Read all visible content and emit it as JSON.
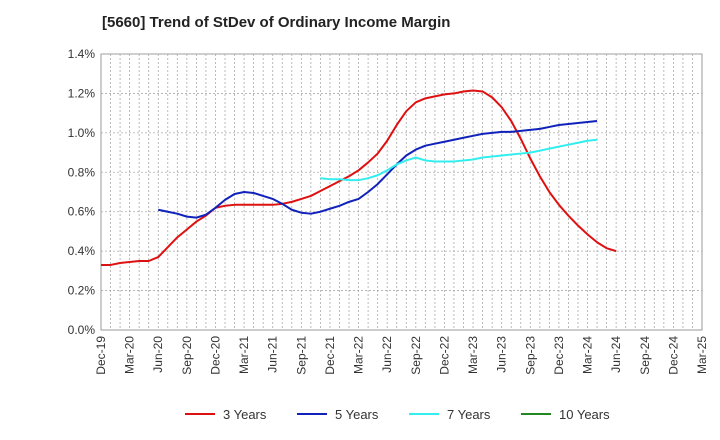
{
  "chart_data": {
    "type": "line",
    "title": "[5660]  Trend of StDev of Ordinary Income Margin",
    "xlabel": "",
    "ylabel": "",
    "ylim": [
      0,
      1.4
    ],
    "y_ticks": [
      0,
      0.2,
      0.4,
      0.6,
      0.8,
      1.0,
      1.2,
      1.4
    ],
    "y_tick_labels": [
      "0.0%",
      "0.2%",
      "0.4%",
      "0.6%",
      "0.8%",
      "1.0%",
      "1.2%",
      "1.4%"
    ],
    "x_tick_labels": [
      "Dec-19",
      "Mar-20",
      "Jun-20",
      "Sep-20",
      "Dec-20",
      "Mar-21",
      "Jun-21",
      "Sep-21",
      "Dec-21",
      "Mar-22",
      "Jun-22",
      "Sep-22",
      "Dec-22",
      "Mar-23",
      "Jun-23",
      "Sep-23",
      "Dec-23",
      "Mar-24",
      "Jun-24",
      "Sep-24",
      "Dec-24",
      "Mar-25"
    ],
    "grid": true,
    "legend_position": "bottom",
    "series": [
      {
        "name": "3 Years",
        "color": "#dd1111",
        "points": [
          [
            0,
            0.33
          ],
          [
            1,
            0.33
          ],
          [
            2,
            0.34
          ],
          [
            3,
            0.345
          ],
          [
            4,
            0.35
          ],
          [
            5,
            0.35
          ],
          [
            6,
            0.37
          ],
          [
            7,
            0.42
          ],
          [
            8,
            0.47
          ],
          [
            9,
            0.51
          ],
          [
            10,
            0.55
          ],
          [
            11,
            0.58
          ],
          [
            12,
            0.62
          ],
          [
            13,
            0.63
          ],
          [
            14,
            0.635
          ],
          [
            15,
            0.635
          ],
          [
            16,
            0.635
          ],
          [
            17,
            0.635
          ],
          [
            18,
            0.635
          ],
          [
            19,
            0.64
          ],
          [
            20,
            0.65
          ],
          [
            21,
            0.665
          ],
          [
            22,
            0.68
          ],
          [
            23,
            0.705
          ],
          [
            24,
            0.73
          ],
          [
            25,
            0.755
          ],
          [
            26,
            0.78
          ],
          [
            27,
            0.81
          ],
          [
            28,
            0.85
          ],
          [
            29,
            0.895
          ],
          [
            30,
            0.96
          ],
          [
            31,
            1.04
          ],
          [
            32,
            1.11
          ],
          [
            33,
            1.155
          ],
          [
            34,
            1.175
          ],
          [
            35,
            1.185
          ],
          [
            36,
            1.195
          ],
          [
            37,
            1.2
          ],
          [
            38,
            1.21
          ],
          [
            39,
            1.215
          ],
          [
            40,
            1.21
          ],
          [
            41,
            1.18
          ],
          [
            42,
            1.13
          ],
          [
            43,
            1.06
          ],
          [
            44,
            0.97
          ],
          [
            45,
            0.87
          ],
          [
            46,
            0.78
          ],
          [
            47,
            0.7
          ],
          [
            48,
            0.635
          ],
          [
            49,
            0.58
          ],
          [
            50,
            0.53
          ],
          [
            51,
            0.485
          ],
          [
            52,
            0.445
          ],
          [
            53,
            0.415
          ],
          [
            54,
            0.4
          ]
        ]
      },
      {
        "name": "5 Years",
        "color": "#1122bb",
        "points": [
          [
            6,
            0.61
          ],
          [
            7,
            0.6
          ],
          [
            8,
            0.59
          ],
          [
            9,
            0.575
          ],
          [
            10,
            0.57
          ],
          [
            11,
            0.585
          ],
          [
            12,
            0.62
          ],
          [
            13,
            0.66
          ],
          [
            14,
            0.69
          ],
          [
            15,
            0.7
          ],
          [
            16,
            0.695
          ],
          [
            17,
            0.68
          ],
          [
            18,
            0.665
          ],
          [
            19,
            0.64
          ],
          [
            20,
            0.61
          ],
          [
            21,
            0.595
          ],
          [
            22,
            0.59
          ],
          [
            23,
            0.6
          ],
          [
            24,
            0.615
          ],
          [
            25,
            0.63
          ],
          [
            26,
            0.65
          ],
          [
            27,
            0.665
          ],
          [
            28,
            0.7
          ],
          [
            29,
            0.74
          ],
          [
            30,
            0.79
          ],
          [
            31,
            0.84
          ],
          [
            32,
            0.885
          ],
          [
            33,
            0.915
          ],
          [
            34,
            0.935
          ],
          [
            35,
            0.945
          ],
          [
            36,
            0.955
          ],
          [
            37,
            0.965
          ],
          [
            38,
            0.975
          ],
          [
            39,
            0.985
          ],
          [
            40,
            0.995
          ],
          [
            41,
            1.0
          ],
          [
            42,
            1.005
          ],
          [
            43,
            1.005
          ],
          [
            44,
            1.01
          ],
          [
            45,
            1.015
          ],
          [
            46,
            1.02
          ],
          [
            47,
            1.03
          ],
          [
            48,
            1.04
          ],
          [
            49,
            1.045
          ],
          [
            50,
            1.05
          ],
          [
            51,
            1.055
          ],
          [
            52,
            1.06
          ]
        ]
      },
      {
        "name": "7 Years",
        "color": "#33eeee",
        "points": [
          [
            23,
            0.77
          ],
          [
            24,
            0.765
          ],
          [
            25,
            0.765
          ],
          [
            26,
            0.76
          ],
          [
            27,
            0.76
          ],
          [
            28,
            0.77
          ],
          [
            29,
            0.785
          ],
          [
            30,
            0.81
          ],
          [
            31,
            0.84
          ],
          [
            32,
            0.86
          ],
          [
            33,
            0.875
          ],
          [
            34,
            0.86
          ],
          [
            35,
            0.855
          ],
          [
            36,
            0.855
          ],
          [
            37,
            0.855
          ],
          [
            38,
            0.86
          ],
          [
            39,
            0.865
          ],
          [
            40,
            0.875
          ],
          [
            41,
            0.88
          ],
          [
            42,
            0.885
          ],
          [
            43,
            0.89
          ],
          [
            44,
            0.895
          ],
          [
            45,
            0.9
          ],
          [
            46,
            0.91
          ],
          [
            47,
            0.92
          ],
          [
            48,
            0.93
          ],
          [
            49,
            0.94
          ],
          [
            50,
            0.95
          ],
          [
            51,
            0.96
          ],
          [
            52,
            0.965
          ]
        ]
      },
      {
        "name": "10 Years",
        "color": "#228822",
        "points": []
      }
    ]
  }
}
